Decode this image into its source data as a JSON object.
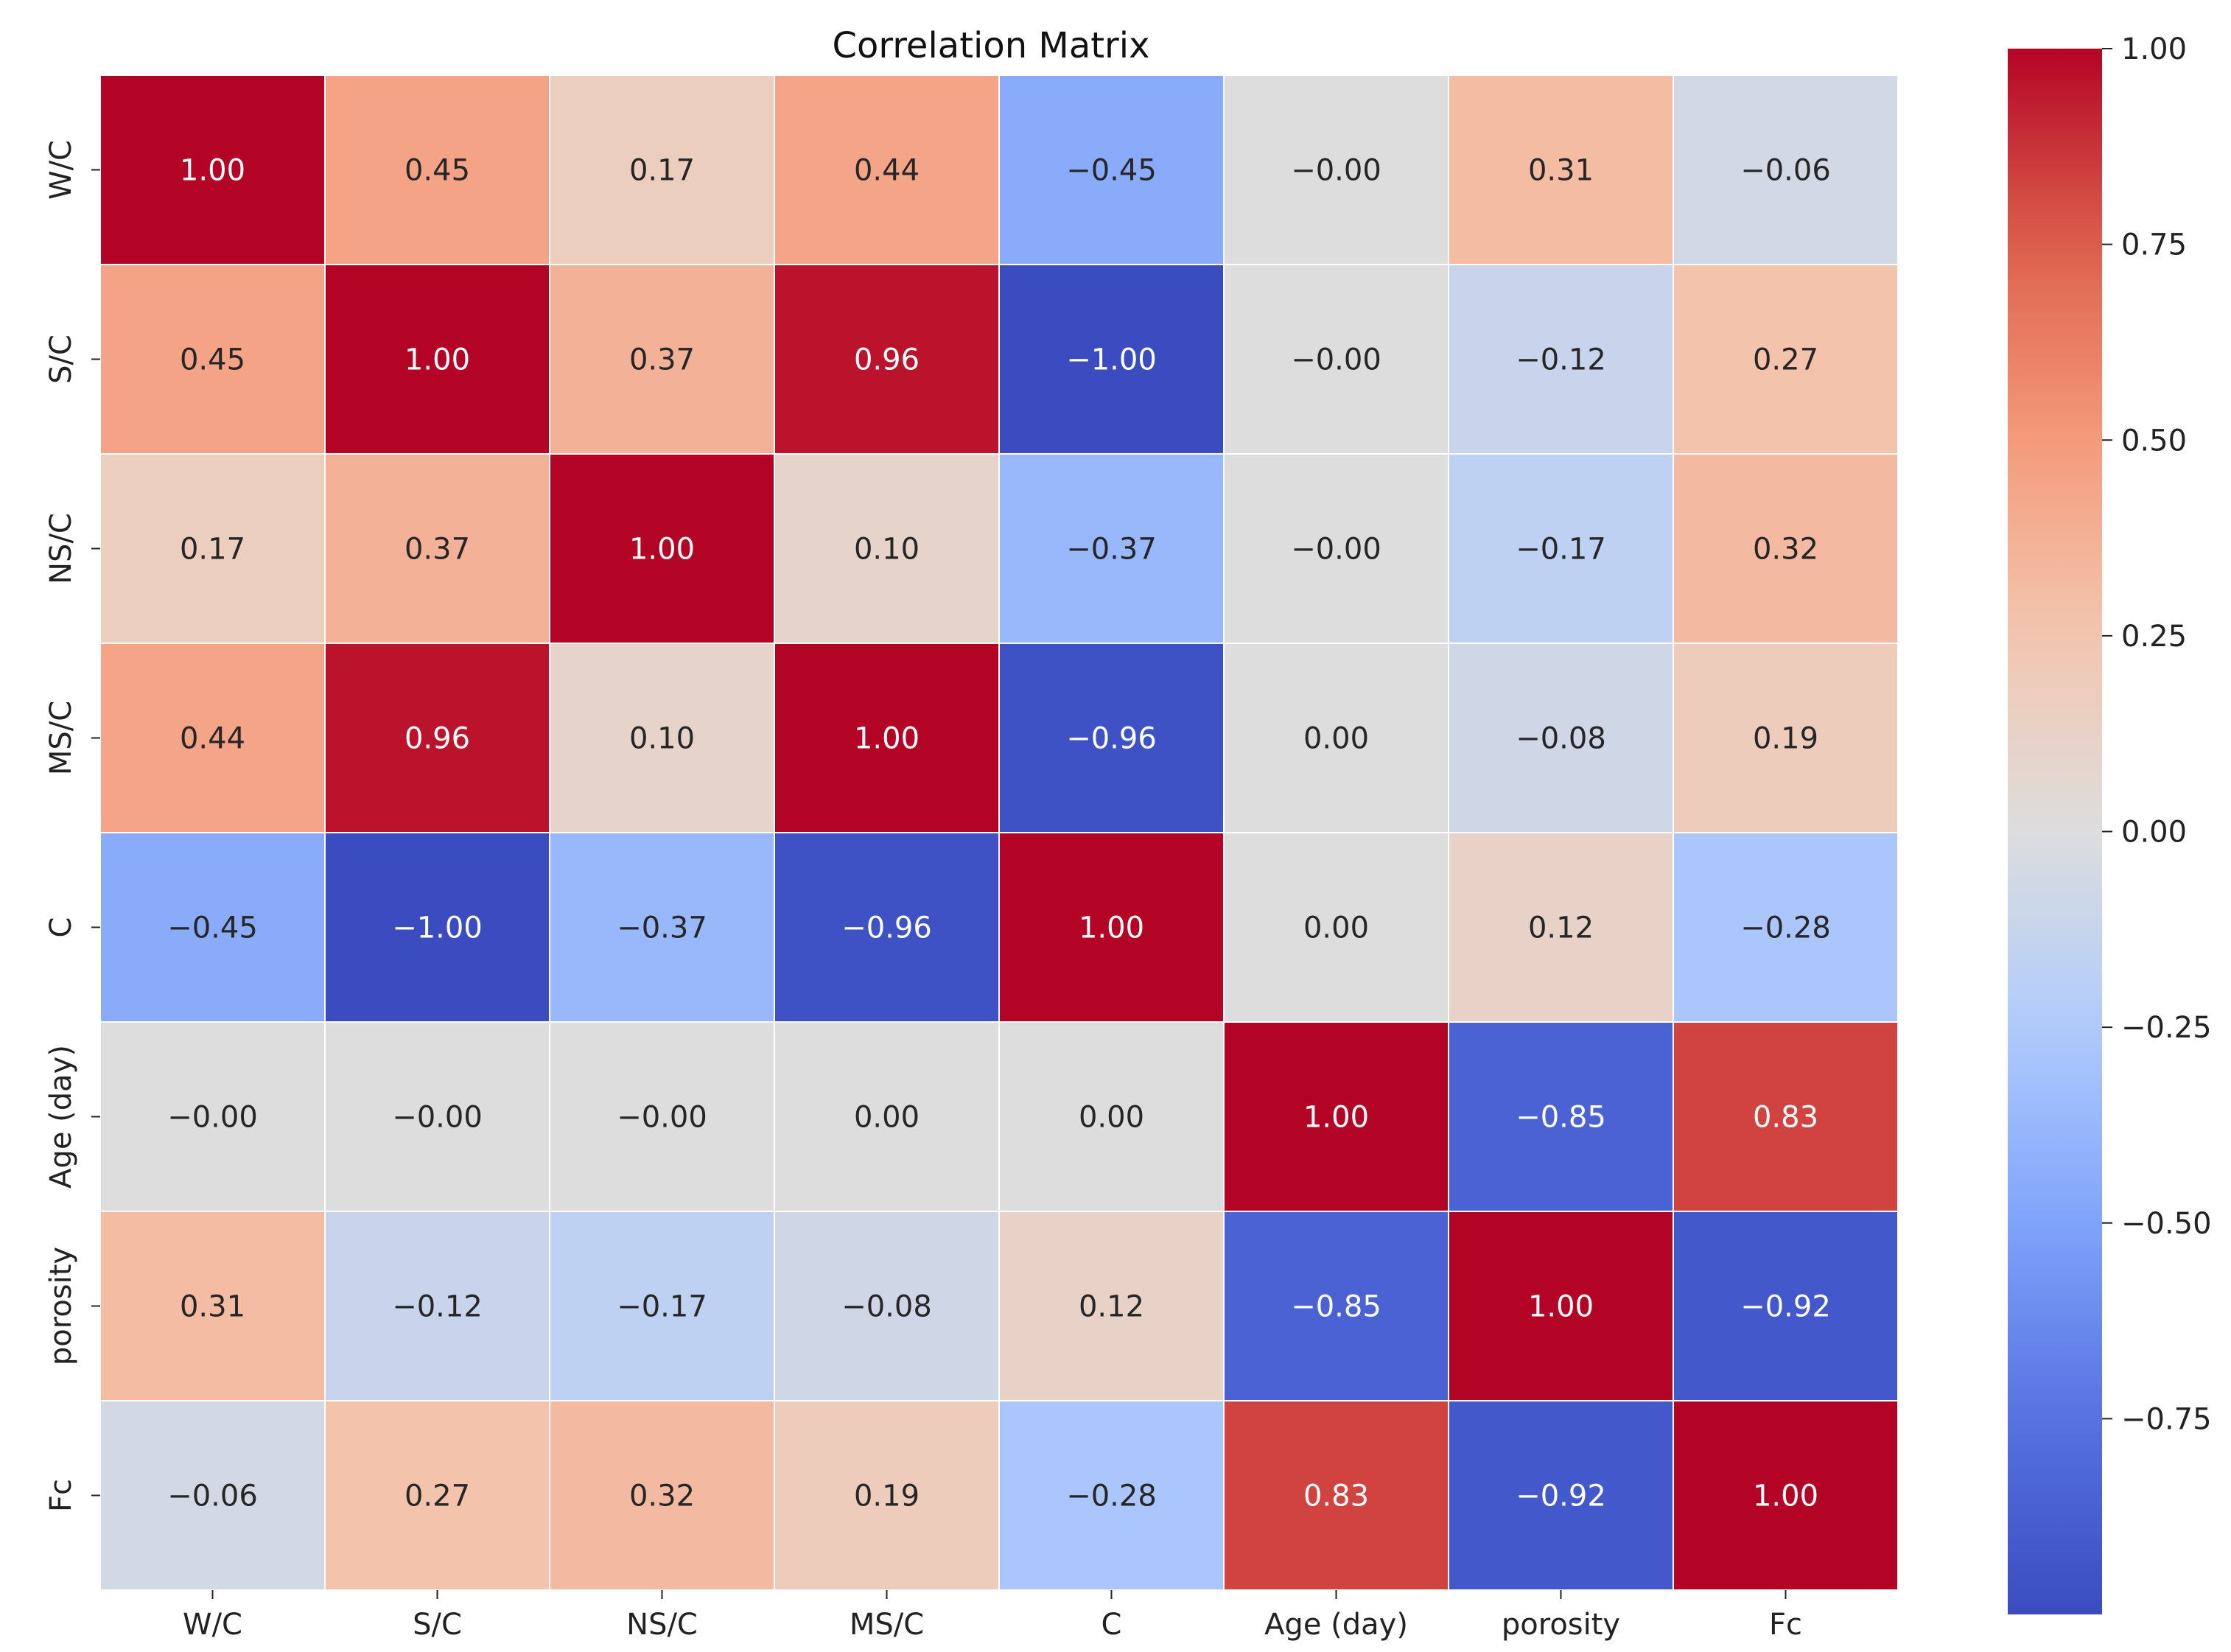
{
  "chart_data": {
    "type": "heatmap",
    "title": "Correlation Matrix",
    "xlabel": "",
    "ylabel": "",
    "x_categories": [
      "W/C",
      "S/C",
      "NS/C",
      "MS/C",
      "C",
      "Age (day)",
      "porosity",
      "Fc"
    ],
    "y_categories": [
      "W/C",
      "S/C",
      "NS/C",
      "MS/C",
      "C",
      "Age (day)",
      "porosity",
      "Fc"
    ],
    "values": [
      [
        1.0,
        0.45,
        0.17,
        0.44,
        -0.45,
        -0.0,
        0.31,
        -0.06
      ],
      [
        0.45,
        1.0,
        0.37,
        0.96,
        -1.0,
        -0.0,
        -0.12,
        0.27
      ],
      [
        0.17,
        0.37,
        1.0,
        0.1,
        -0.37,
        -0.0,
        -0.17,
        0.32
      ],
      [
        0.44,
        0.96,
        0.1,
        1.0,
        -0.96,
        0.0,
        -0.08,
        0.19
      ],
      [
        -0.45,
        -1.0,
        -0.37,
        -0.96,
        1.0,
        0.0,
        0.12,
        -0.28
      ],
      [
        -0.0,
        -0.0,
        -0.0,
        0.0,
        0.0,
        1.0,
        -0.85,
        0.83
      ],
      [
        0.31,
        -0.12,
        -0.17,
        -0.08,
        0.12,
        -0.85,
        1.0,
        -0.92
      ],
      [
        -0.06,
        0.27,
        0.32,
        0.19,
        -0.28,
        0.83,
        -0.92,
        1.0
      ]
    ],
    "labels": [
      [
        "1.00",
        "0.45",
        "0.17",
        "0.44",
        "−0.45",
        "−0.00",
        "0.31",
        "−0.06"
      ],
      [
        "0.45",
        "1.00",
        "0.37",
        "0.96",
        "−1.00",
        "−0.00",
        "−0.12",
        "0.27"
      ],
      [
        "0.17",
        "0.37",
        "1.00",
        "0.10",
        "−0.37",
        "−0.00",
        "−0.17",
        "0.32"
      ],
      [
        "0.44",
        "0.96",
        "0.10",
        "1.00",
        "−0.96",
        "0.00",
        "−0.08",
        "0.19"
      ],
      [
        "−0.45",
        "−1.00",
        "−0.37",
        "−0.96",
        "1.00",
        "0.00",
        "0.12",
        "−0.28"
      ],
      [
        "−0.00",
        "−0.00",
        "−0.00",
        "0.00",
        "0.00",
        "1.00",
        "−0.85",
        "0.83"
      ],
      [
        "0.31",
        "−0.12",
        "−0.17",
        "−0.08",
        "0.12",
        "−0.85",
        "1.00",
        "−0.92"
      ],
      [
        "−0.06",
        "0.27",
        "0.32",
        "0.19",
        "−0.28",
        "0.83",
        "−0.92",
        "1.00"
      ]
    ],
    "colorscale": "coolwarm",
    "color_range": [
      -1.0,
      1.0
    ],
    "colorbar": {
      "ticks": [
        1.0,
        0.75,
        0.5,
        0.25,
        0.0,
        -0.25,
        -0.5,
        -0.75
      ],
      "tick_labels": [
        "1.00",
        "0.75",
        "0.50",
        "0.25",
        "0.00",
        "−0.25",
        "−0.50",
        "−0.75"
      ],
      "placement": "right"
    },
    "grid": false
  }
}
